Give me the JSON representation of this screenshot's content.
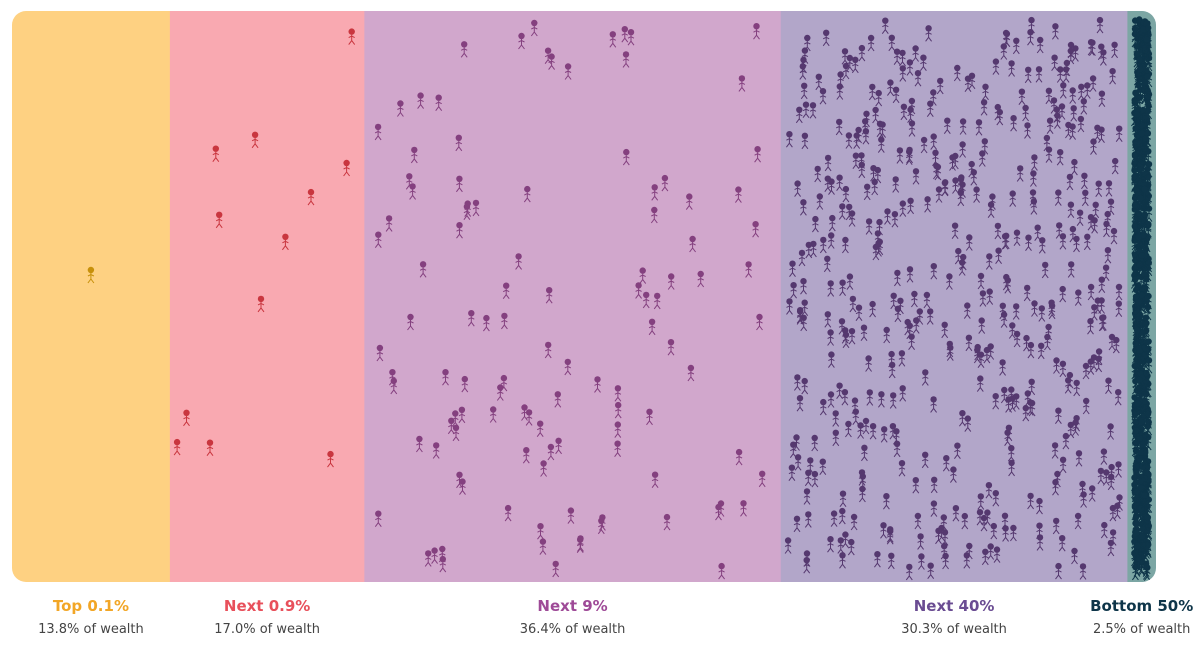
{
  "chart_data": {
    "type": "area",
    "title": "",
    "groups": [
      {
        "name": "Top 0.1%",
        "share_label": "13.8% of wealth",
        "wealth_share": 13.8,
        "fill": "#FED182",
        "label_color": "#F2A626",
        "icon_color": "#C7900A",
        "people_shown": 1
      },
      {
        "name": "Next 0.9%",
        "share_label": "17.0% of wealth",
        "wealth_share": 17.0,
        "fill": "#F9A9B1",
        "label_color": "#E8505B",
        "icon_color": "#C9363F",
        "people_shown": 12
      },
      {
        "name": "Next 9%",
        "share_label": "36.4% of wealth",
        "wealth_share": 36.4,
        "fill": "#D1A7CC",
        "label_color": "#9E4A97",
        "icon_color": "#84407F",
        "people_shown": 110
      },
      {
        "name": "Next 40%",
        "share_label": "30.3% of wealth",
        "wealth_share": 30.3,
        "fill": "#B2A6C9",
        "label_color": "#6A4C92",
        "icon_color": "#55386F",
        "people_shown": 480
      },
      {
        "name": "Bottom 50%",
        "share_label": "2.5% of wealth",
        "wealth_share": 2.5,
        "fill": "#7CA6A4",
        "label_color": "#0E3549",
        "icon_color": "#0E3549",
        "people_shown": 600
      }
    ]
  }
}
